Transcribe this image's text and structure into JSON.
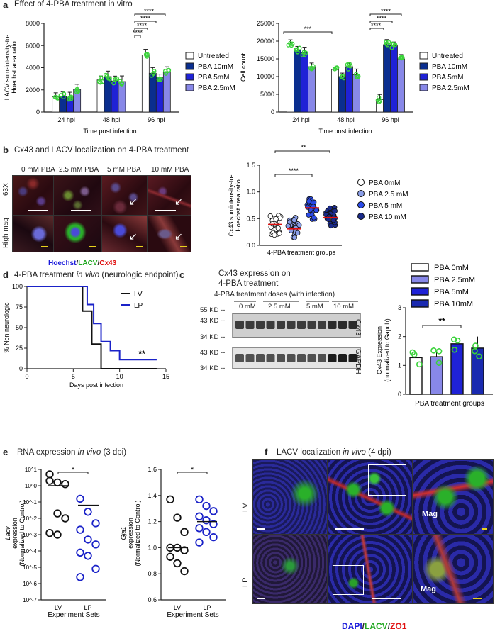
{
  "panel_labels": {
    "a": "a",
    "b": "b",
    "c": "c",
    "d": "d",
    "e": "e",
    "f": "f"
  },
  "a": {
    "title": "Effect of 4-PBA treatment in vitro",
    "legend": [
      "Untreated",
      "PBA 10mM",
      "PBA 5mM",
      "PBA 2.5mM"
    ],
    "colors": [
      "#ffffff",
      "#0a2e8f",
      "#1f22d6",
      "#8888e8"
    ],
    "xlabel": "Time post infection",
    "left_ylabel": [
      "LACV sum-intensity-to-",
      "Hoechst area ratio"
    ],
    "right_ylabel": "Cell count"
  },
  "b": {
    "title": "Cx43 and LACV localization on 4-PBA treatment",
    "cols": [
      "0 mM PBA",
      "2.5 mM PBA",
      "5 mM PBA",
      "10 mM PBA"
    ],
    "rows": [
      "63X",
      "High mag"
    ],
    "stain": [
      {
        "t": "Hoechst",
        "c": "#1a1adb"
      },
      {
        "t": "/",
        "c": "#222"
      },
      {
        "t": "LACV",
        "c": "#22a822"
      },
      {
        "t": "/",
        "c": "#222"
      },
      {
        "t": "Cx43",
        "c": "#e01010"
      }
    ],
    "legend": [
      "PBA 0mM",
      "PBA 2.5 mM",
      "PBA 5 mM",
      "PBA 10 mM"
    ],
    "ylabel": [
      "Cx43 sumintensity-to-",
      "Hoechst area ratio"
    ],
    "xlabel": "4-PBA treatment groups"
  },
  "c": {
    "title": [
      "Cx43 expression on",
      "4-PBA treatment"
    ],
    "blot_header": "4-PBA treatment doses (with infection)",
    "doses": [
      "0 mM",
      "2.5 mM",
      "5 mM",
      "10 mM"
    ],
    "mw_top": [
      "55 KD --",
      "43 KD --",
      "34 KD --"
    ],
    "mw_bottom": [
      "43 KD --",
      "34 KD --"
    ],
    "protein_top": "Cx43",
    "protein_bottom": "GAPDH",
    "legend": [
      "PBA 0mM",
      "PBA 2.5mM",
      "PBA 5mM",
      "PBA 10mM"
    ],
    "ylabel": [
      "Cx43 Expression",
      "(normalized to Gapdh)"
    ],
    "xlabel": "PBA treatment groups"
  },
  "d": {
    "title_prefix": "4-PBA treatment ",
    "title_italic": "in vivo",
    "title_suffix": " (neurologic endpoint)",
    "legend": [
      "LV",
      "LP"
    ],
    "ylabel": "% Non neurologic",
    "xlabel": "Days post infection"
  },
  "e": {
    "title_prefix": "RNA expression ",
    "title_italic": "in vivo",
    "title_suffix": " (3 dpi)",
    "gene1": "Lacv",
    "gene2": "Gja1",
    "ysub": "expression",
    "ysub2": "(Normalized to Control)",
    "xlabel": "Experiment Sets"
  },
  "f": {
    "title_prefix": "LACV localization ",
    "title_italic": "in vivo",
    "title_suffix": " (4 dpi)",
    "rows": [
      "LV",
      "LP"
    ],
    "mag": "Mag",
    "stain": [
      {
        "t": "DAPI",
        "c": "#1a1adb"
      },
      {
        "t": "/",
        "c": "#222"
      },
      {
        "t": "LACV",
        "c": "#22a822"
      },
      {
        "t": "/",
        "c": "#222"
      },
      {
        "t": "ZO1",
        "c": "#e01010"
      }
    ]
  },
  "chart_data": [
    {
      "id": "a-left",
      "type": "bar",
      "categories": [
        "24 hpi",
        "48 hpi",
        "96 hpi"
      ],
      "series": [
        {
          "name": "Untreated",
          "values": [
            1380,
            2900,
            5150
          ]
        },
        {
          "name": "PBA 10mM",
          "values": [
            1420,
            3200,
            3500
          ]
        },
        {
          "name": "PBA 5mM",
          "values": [
            1300,
            2800,
            3100
          ]
        },
        {
          "name": "PBA 2.5mM",
          "values": [
            2050,
            2750,
            3600
          ]
        }
      ],
      "ylim": [
        0,
        8000
      ],
      "yticks": [
        "0",
        "2000",
        "4000",
        "6000",
        "8000"
      ],
      "significance": [
        "****",
        "****",
        "****",
        "****"
      ]
    },
    {
      "id": "a-right",
      "type": "bar",
      "categories": [
        "24 hpi",
        "48 hpi",
        "96 hpi"
      ],
      "series": [
        {
          "name": "Untreated",
          "values": [
            19500,
            12000,
            3500
          ]
        },
        {
          "name": "PBA 10mM",
          "values": [
            17500,
            10000,
            19000
          ]
        },
        {
          "name": "PBA 5mM",
          "values": [
            16800,
            12800,
            18700
          ]
        },
        {
          "name": "PBA 2.5mM",
          "values": [
            12800,
            10500,
            15000
          ]
        }
      ],
      "ylim": [
        0,
        25000
      ],
      "yticks": [
        "0",
        "5000",
        "10000",
        "15000",
        "20000",
        "25000"
      ],
      "significance": [
        "***",
        "****",
        "****",
        "****"
      ]
    },
    {
      "id": "b-scatter",
      "type": "scatter",
      "groups": [
        "PBA 0mM",
        "PBA 2.5 mM",
        "PBA 5 mM",
        "PBA 10 mM"
      ],
      "medians": [
        0.39,
        0.31,
        0.7,
        0.52
      ],
      "ylim": [
        0,
        1.5
      ],
      "yticks": [
        "0.0",
        "0.5",
        "1.0",
        "1.5"
      ],
      "significance": [
        "****",
        "**"
      ]
    },
    {
      "id": "c-bar",
      "type": "bar",
      "categories": [
        "PBA 0mM",
        "PBA 2.5mM",
        "PBA 5mM",
        "PBA 10mM"
      ],
      "values": [
        1.27,
        1.3,
        1.75,
        1.6
      ],
      "ylim": [
        0,
        3
      ],
      "yticks": [
        "0",
        "1",
        "2",
        "3"
      ],
      "significance": [
        "**"
      ]
    },
    {
      "id": "d-survival",
      "type": "line",
      "series": [
        {
          "name": "LV",
          "x": [
            0,
            6,
            6,
            7,
            7,
            8,
            8,
            14
          ],
          "y": [
            100,
            100,
            70,
            70,
            30,
            30,
            0,
            0
          ]
        },
        {
          "name": "LP",
          "x": [
            0,
            6.5,
            6.5,
            7.2,
            7.2,
            8,
            8,
            9,
            9,
            10,
            10,
            11,
            11,
            14
          ],
          "y": [
            100,
            100,
            78,
            78,
            55,
            55,
            33,
            33,
            22,
            22,
            11,
            11,
            11,
            11
          ]
        }
      ],
      "xlim": [
        0,
        15
      ],
      "ylim": [
        0,
        100
      ],
      "xticks": [
        "0",
        "5",
        "10",
        "15"
      ],
      "yticks": [
        "0",
        "25",
        "50",
        "75",
        "100"
      ],
      "significance": "**"
    },
    {
      "id": "e-lacv",
      "type": "scatter",
      "categories": [
        "LV",
        "LP"
      ],
      "yticks": [
        "10^-7",
        "10^-6",
        "10^-5",
        "10^-4",
        "10^-3",
        "10^-2",
        "10^-1",
        "10^0",
        "10^1"
      ],
      "significance": "*"
    },
    {
      "id": "e-gja1",
      "type": "scatter",
      "categories": [
        "LV",
        "LP"
      ],
      "medians": [
        1.0,
        1.2
      ],
      "ylim": [
        0.6,
        1.6
      ],
      "yticks": [
        "0.6",
        "0.8",
        "1.0",
        "1.2",
        "1.4",
        "1.6"
      ],
      "significance": "*"
    }
  ]
}
